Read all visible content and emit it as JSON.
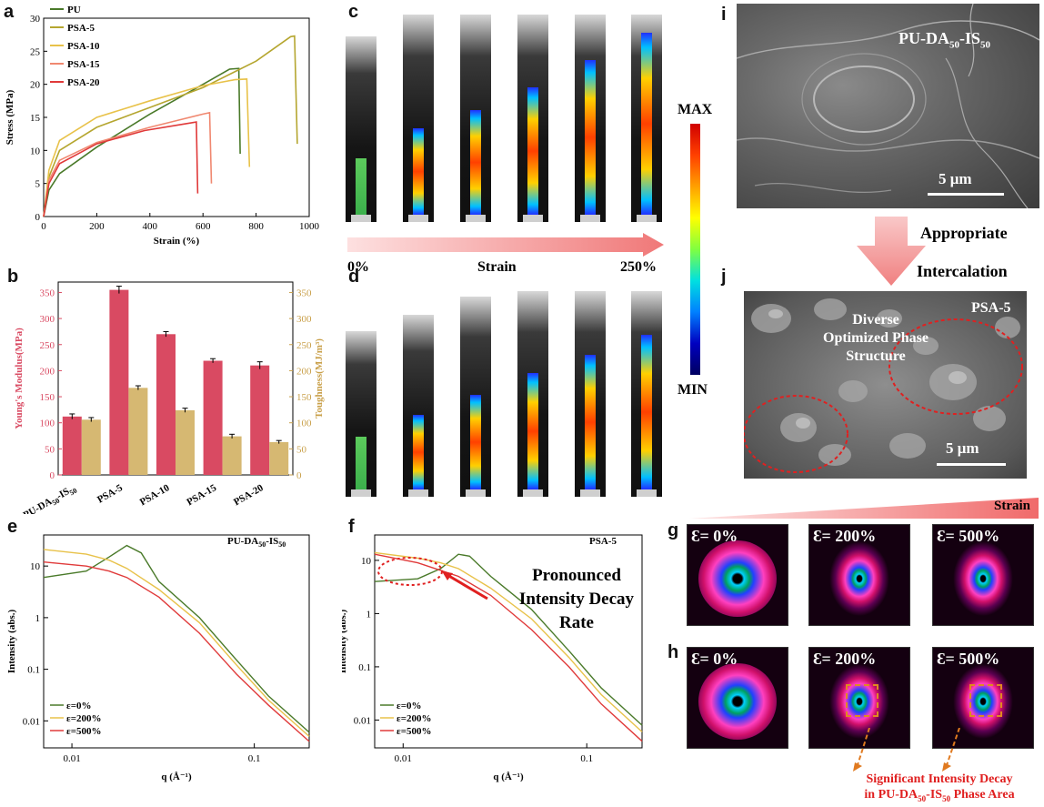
{
  "labels": {
    "a": "a",
    "b": "b",
    "c": "c",
    "d": "d",
    "e": "e",
    "f": "f",
    "g": "g",
    "h": "h",
    "i": "i",
    "j": "j"
  },
  "colors": {
    "PU": "#4a7a2a",
    "PSA-5": "#b5a630",
    "PSA-10": "#e8c24a",
    "PSA-15": "#f08870",
    "PSA-20": "#e03a3a",
    "bar_red": "#d94a62",
    "bar_gold": "#d6b872"
  },
  "chart_data": [
    {
      "id": "a",
      "type": "line",
      "xlabel": "Strain (%)",
      "ylabel": "Stress (MPa)",
      "xlim": [
        0,
        1000
      ],
      "ylim": [
        0,
        30
      ],
      "xticks": [
        0,
        200,
        400,
        600,
        800,
        1000
      ],
      "yticks": [
        0,
        5,
        10,
        15,
        20,
        25,
        30
      ],
      "legend_position": "top-left",
      "series": [
        {
          "name": "PU",
          "points": [
            [
              0,
              0
            ],
            [
              20,
              4
            ],
            [
              60,
              6.5
            ],
            [
              200,
              10.5
            ],
            [
              400,
              15.5
            ],
            [
              600,
              20
            ],
            [
              700,
              22.3
            ],
            [
              735,
              22.4
            ],
            [
              740,
              9.5
            ]
          ]
        },
        {
          "name": "PSA-5",
          "points": [
            [
              0,
              0
            ],
            [
              20,
              6
            ],
            [
              60,
              10
            ],
            [
              200,
              13.5
            ],
            [
              400,
              16.5
            ],
            [
              600,
              19.5
            ],
            [
              800,
              23.5
            ],
            [
              930,
              27.2
            ],
            [
              945,
              27.3
            ],
            [
              955,
              11
            ]
          ]
        },
        {
          "name": "PSA-10",
          "points": [
            [
              0,
              0
            ],
            [
              20,
              7
            ],
            [
              60,
              11.5
            ],
            [
              200,
              15
            ],
            [
              400,
              17.5
            ],
            [
              600,
              19.8
            ],
            [
              720,
              20.7
            ],
            [
              765,
              20.8
            ],
            [
              775,
              7.5
            ]
          ]
        },
        {
          "name": "PSA-15",
          "points": [
            [
              0,
              0
            ],
            [
              20,
              5.5
            ],
            [
              60,
              8.5
            ],
            [
              200,
              11.2
            ],
            [
              400,
              13.5
            ],
            [
              500,
              14.5
            ],
            [
              600,
              15.5
            ],
            [
              625,
              15.7
            ],
            [
              632,
              5
            ]
          ]
        },
        {
          "name": "PSA-20",
          "points": [
            [
              0,
              0
            ],
            [
              20,
              5
            ],
            [
              60,
              8
            ],
            [
              200,
              11
            ],
            [
              380,
              13
            ],
            [
              500,
              13.8
            ],
            [
              560,
              14.2
            ],
            [
              575,
              14.3
            ],
            [
              580,
              3.5
            ]
          ]
        }
      ]
    },
    {
      "id": "b",
      "type": "bar",
      "categories": [
        "PU-DA50-IS50",
        "PSA-5",
        "PSA-10",
        "PSA-15",
        "PSA-20"
      ],
      "category_labels": [
        [
          "PU-DA",
          "50",
          "-IS",
          "50"
        ],
        [
          "PSA-5"
        ],
        [
          "PSA-10"
        ],
        [
          "PSA-15"
        ],
        [
          "PSA-20"
        ]
      ],
      "ylabel_left": "Young's Modulus(MPa)",
      "ylabel_right": "Toughness(MJ/m³)",
      "ylim_left": [
        0,
        370
      ],
      "ylim_right": [
        0,
        370
      ],
      "yticks_left": [
        0,
        50,
        100,
        150,
        200,
        250,
        300,
        350
      ],
      "yticks_right": [
        0,
        50,
        100,
        150,
        200,
        250,
        300,
        350
      ],
      "series": [
        {
          "name": "Young's Modulus",
          "axis": "left",
          "values": [
            112,
            355,
            270,
            219,
            210
          ],
          "errors": [
            5,
            7,
            5,
            4,
            7
          ]
        },
        {
          "name": "Toughness",
          "axis": "right",
          "values": [
            106,
            167,
            124,
            74,
            63
          ],
          "errors": [
            4,
            4,
            4,
            4,
            3
          ]
        }
      ]
    },
    {
      "id": "e",
      "type": "line",
      "log_x": true,
      "log_y": true,
      "xlabel": "q (Å⁻¹)",
      "ylabel": "Intensity (abs.)",
      "xlim": [
        0.007,
        0.2
      ],
      "ylim": [
        0.003,
        40
      ],
      "annotation": "PU-DA50-IS50",
      "legend_position": "bottom-left",
      "series": [
        {
          "name": "ε=0%",
          "points": [
            [
              0.007,
              6
            ],
            [
              0.012,
              8
            ],
            [
              0.016,
              15
            ],
            [
              0.02,
              25
            ],
            [
              0.024,
              18
            ],
            [
              0.03,
              5
            ],
            [
              0.05,
              1
            ],
            [
              0.08,
              0.15
            ],
            [
              0.12,
              0.03
            ],
            [
              0.2,
              0.006
            ]
          ]
        },
        {
          "name": "ε=200%",
          "points": [
            [
              0.007,
              21
            ],
            [
              0.012,
              17
            ],
            [
              0.016,
              13
            ],
            [
              0.02,
              9
            ],
            [
              0.03,
              3.5
            ],
            [
              0.05,
              0.8
            ],
            [
              0.08,
              0.12
            ],
            [
              0.12,
              0.025
            ],
            [
              0.2,
              0.005
            ]
          ]
        },
        {
          "name": "ε=500%",
          "points": [
            [
              0.007,
              12
            ],
            [
              0.012,
              10
            ],
            [
              0.016,
              8
            ],
            [
              0.02,
              6
            ],
            [
              0.03,
              2.5
            ],
            [
              0.05,
              0.5
            ],
            [
              0.08,
              0.08
            ],
            [
              0.12,
              0.02
            ],
            [
              0.2,
              0.004
            ]
          ]
        }
      ]
    },
    {
      "id": "f",
      "type": "line",
      "log_x": true,
      "log_y": true,
      "xlabel": "q (Å⁻¹)",
      "ylabel": "Intensity (abs.)",
      "xlim": [
        0.007,
        0.2
      ],
      "ylim": [
        0.003,
        30
      ],
      "annotation": "PSA-5",
      "legend_position": "bottom-left",
      "series": [
        {
          "name": "ε=0%",
          "points": [
            [
              0.007,
              4
            ],
            [
              0.012,
              4.5
            ],
            [
              0.016,
              7
            ],
            [
              0.02,
              13
            ],
            [
              0.023,
              12
            ],
            [
              0.03,
              5
            ],
            [
              0.05,
              1.2
            ],
            [
              0.08,
              0.2
            ],
            [
              0.12,
              0.04
            ],
            [
              0.2,
              0.008
            ]
          ]
        },
        {
          "name": "ε=200%",
          "points": [
            [
              0.007,
              14
            ],
            [
              0.012,
              11
            ],
            [
              0.016,
              9
            ],
            [
              0.02,
              7
            ],
            [
              0.03,
              3
            ],
            [
              0.05,
              0.8
            ],
            [
              0.08,
              0.15
            ],
            [
              0.12,
              0.03
            ],
            [
              0.2,
              0.006
            ]
          ]
        },
        {
          "name": "ε=500%",
          "points": [
            [
              0.007,
              13
            ],
            [
              0.012,
              9
            ],
            [
              0.016,
              6.5
            ],
            [
              0.02,
              5
            ],
            [
              0.03,
              2.2
            ],
            [
              0.05,
              0.5
            ],
            [
              0.08,
              0.1
            ],
            [
              0.12,
              0.02
            ],
            [
              0.2,
              0.004
            ]
          ]
        }
      ]
    }
  ],
  "panel_a": {
    "legend": [
      "PU",
      "PSA-5",
      "PSA-10",
      "PSA-15",
      "PSA-20"
    ]
  },
  "panel_c": {
    "strain_start": "0%",
    "strain_mid": "Strain",
    "strain_end": "250%"
  },
  "colorbar": {
    "max": "MAX",
    "min": "MIN"
  },
  "panel_e": {
    "annotation_main": "PU-DA",
    "sub1": "50",
    "dash": "-IS",
    "sub2": "50",
    "legend": [
      "ε=0%",
      "ε=200%",
      "ε=500%"
    ]
  },
  "panel_f": {
    "annotation": "PSA-5",
    "callout": [
      "Pronounced",
      "Intensity Decay",
      "Rate"
    ],
    "legend": [
      "ε=0%",
      "ε=200%",
      "ε=500%"
    ]
  },
  "panel_i": {
    "title_main": "PU-DA",
    "sub1": "50",
    "dash": "-IS",
    "sub2": "50",
    "scale": "5 μm"
  },
  "arrow_ij": {
    "line1": "Appropriate",
    "line2": "Intercalation"
  },
  "panel_j": {
    "title": "PSA-5",
    "note": [
      "Diverse",
      "Optimized Phase",
      "Structure"
    ],
    "scale": "5 μm"
  },
  "panel_g": {
    "strain_label": "Strain",
    "frames": [
      "Ɛ= 0%",
      "Ɛ= 200%",
      "Ɛ= 500%"
    ]
  },
  "panel_h": {
    "frames": [
      "Ɛ= 0%",
      "Ɛ= 200%",
      "Ɛ= 500%"
    ],
    "caption1": "Significant Intensity Decay",
    "caption2_main": "in PU-DA",
    "caption2_sub1": "50",
    "caption2_dash": "-IS",
    "caption2_sub2": "50",
    "caption2_end": " Phase Area"
  }
}
